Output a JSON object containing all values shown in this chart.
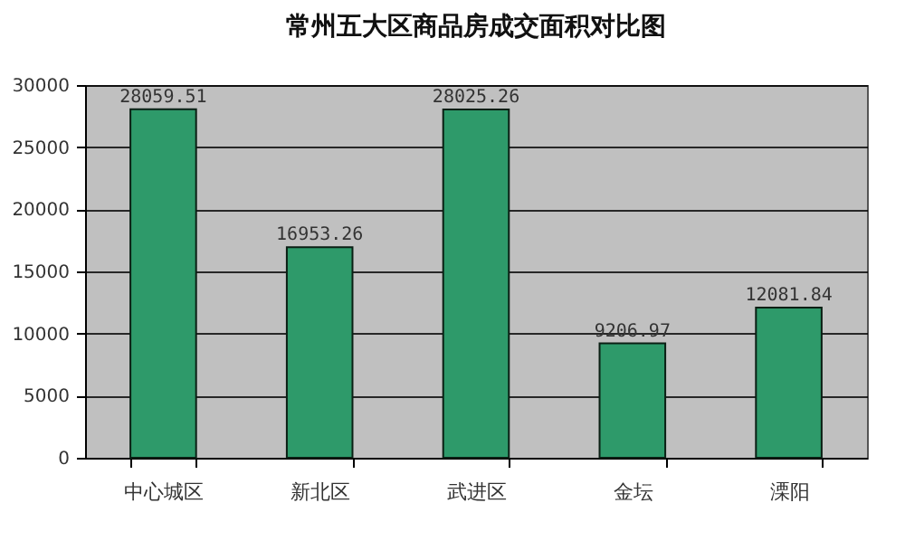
{
  "chart_data": {
    "type": "bar",
    "title": "常州五大区商品房成交面积对比图",
    "categories": [
      "中心城区",
      "新北区",
      "武进区",
      "金坛",
      "溧阳"
    ],
    "values": [
      28059.51,
      16953.26,
      28025.26,
      9206.97,
      12081.84
    ],
    "color": "#2e9a6a",
    "ylim": [
      0,
      30000
    ],
    "yticks": [
      0,
      5000,
      10000,
      15000,
      20000,
      25000,
      30000
    ],
    "grid": "y",
    "data_labels": true
  }
}
